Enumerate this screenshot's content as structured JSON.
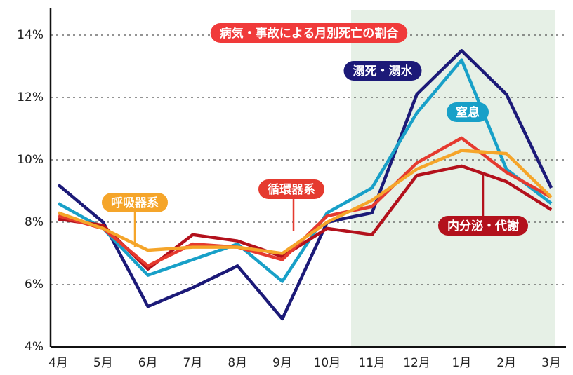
{
  "chart_data": {
    "type": "line",
    "title": "病気・事故による月別死亡の割合",
    "categories": [
      "4月",
      "5月",
      "6月",
      "7月",
      "8月",
      "9月",
      "10月",
      "11月",
      "12月",
      "1月",
      "2月",
      "3月"
    ],
    "series": [
      {
        "name": "溺死・溺水",
        "color": "#1c1a78",
        "values": [
          9.2,
          8.0,
          5.3,
          5.9,
          6.6,
          4.9,
          8.0,
          8.3,
          12.1,
          13.5,
          12.1,
          9.1
        ]
      },
      {
        "name": "窒息",
        "color": "#18a0c8",
        "values": [
          8.6,
          7.8,
          6.3,
          6.8,
          7.3,
          6.1,
          8.3,
          9.1,
          11.5,
          13.2,
          9.7,
          8.6
        ]
      },
      {
        "name": "内分泌・代謝",
        "color": "#b3111c",
        "values": [
          8.1,
          7.9,
          6.5,
          7.6,
          7.4,
          6.9,
          7.8,
          7.6,
          9.5,
          9.8,
          9.3,
          8.4
        ]
      },
      {
        "name": "循環器系",
        "color": "#e53a2f",
        "values": [
          8.2,
          7.8,
          6.6,
          7.3,
          7.2,
          6.8,
          8.2,
          8.5,
          9.9,
          10.7,
          9.6,
          8.8
        ]
      },
      {
        "name": "呼吸器系",
        "color": "#f5a52a",
        "values": [
          8.3,
          7.8,
          7.1,
          7.2,
          7.2,
          7.0,
          8.0,
          8.7,
          9.7,
          10.3,
          10.2,
          8.8
        ]
      }
    ],
    "ylim": [
      4,
      14
    ],
    "yticks": [
      {
        "value": 4,
        "label": "4%"
      },
      {
        "value": 6,
        "label": "6%"
      },
      {
        "value": 8,
        "label": "8%"
      },
      {
        "value": 10,
        "label": "10%"
      },
      {
        "value": 12,
        "label": "12%"
      },
      {
        "value": 14,
        "label": "14%"
      }
    ],
    "grid": true
  }
}
